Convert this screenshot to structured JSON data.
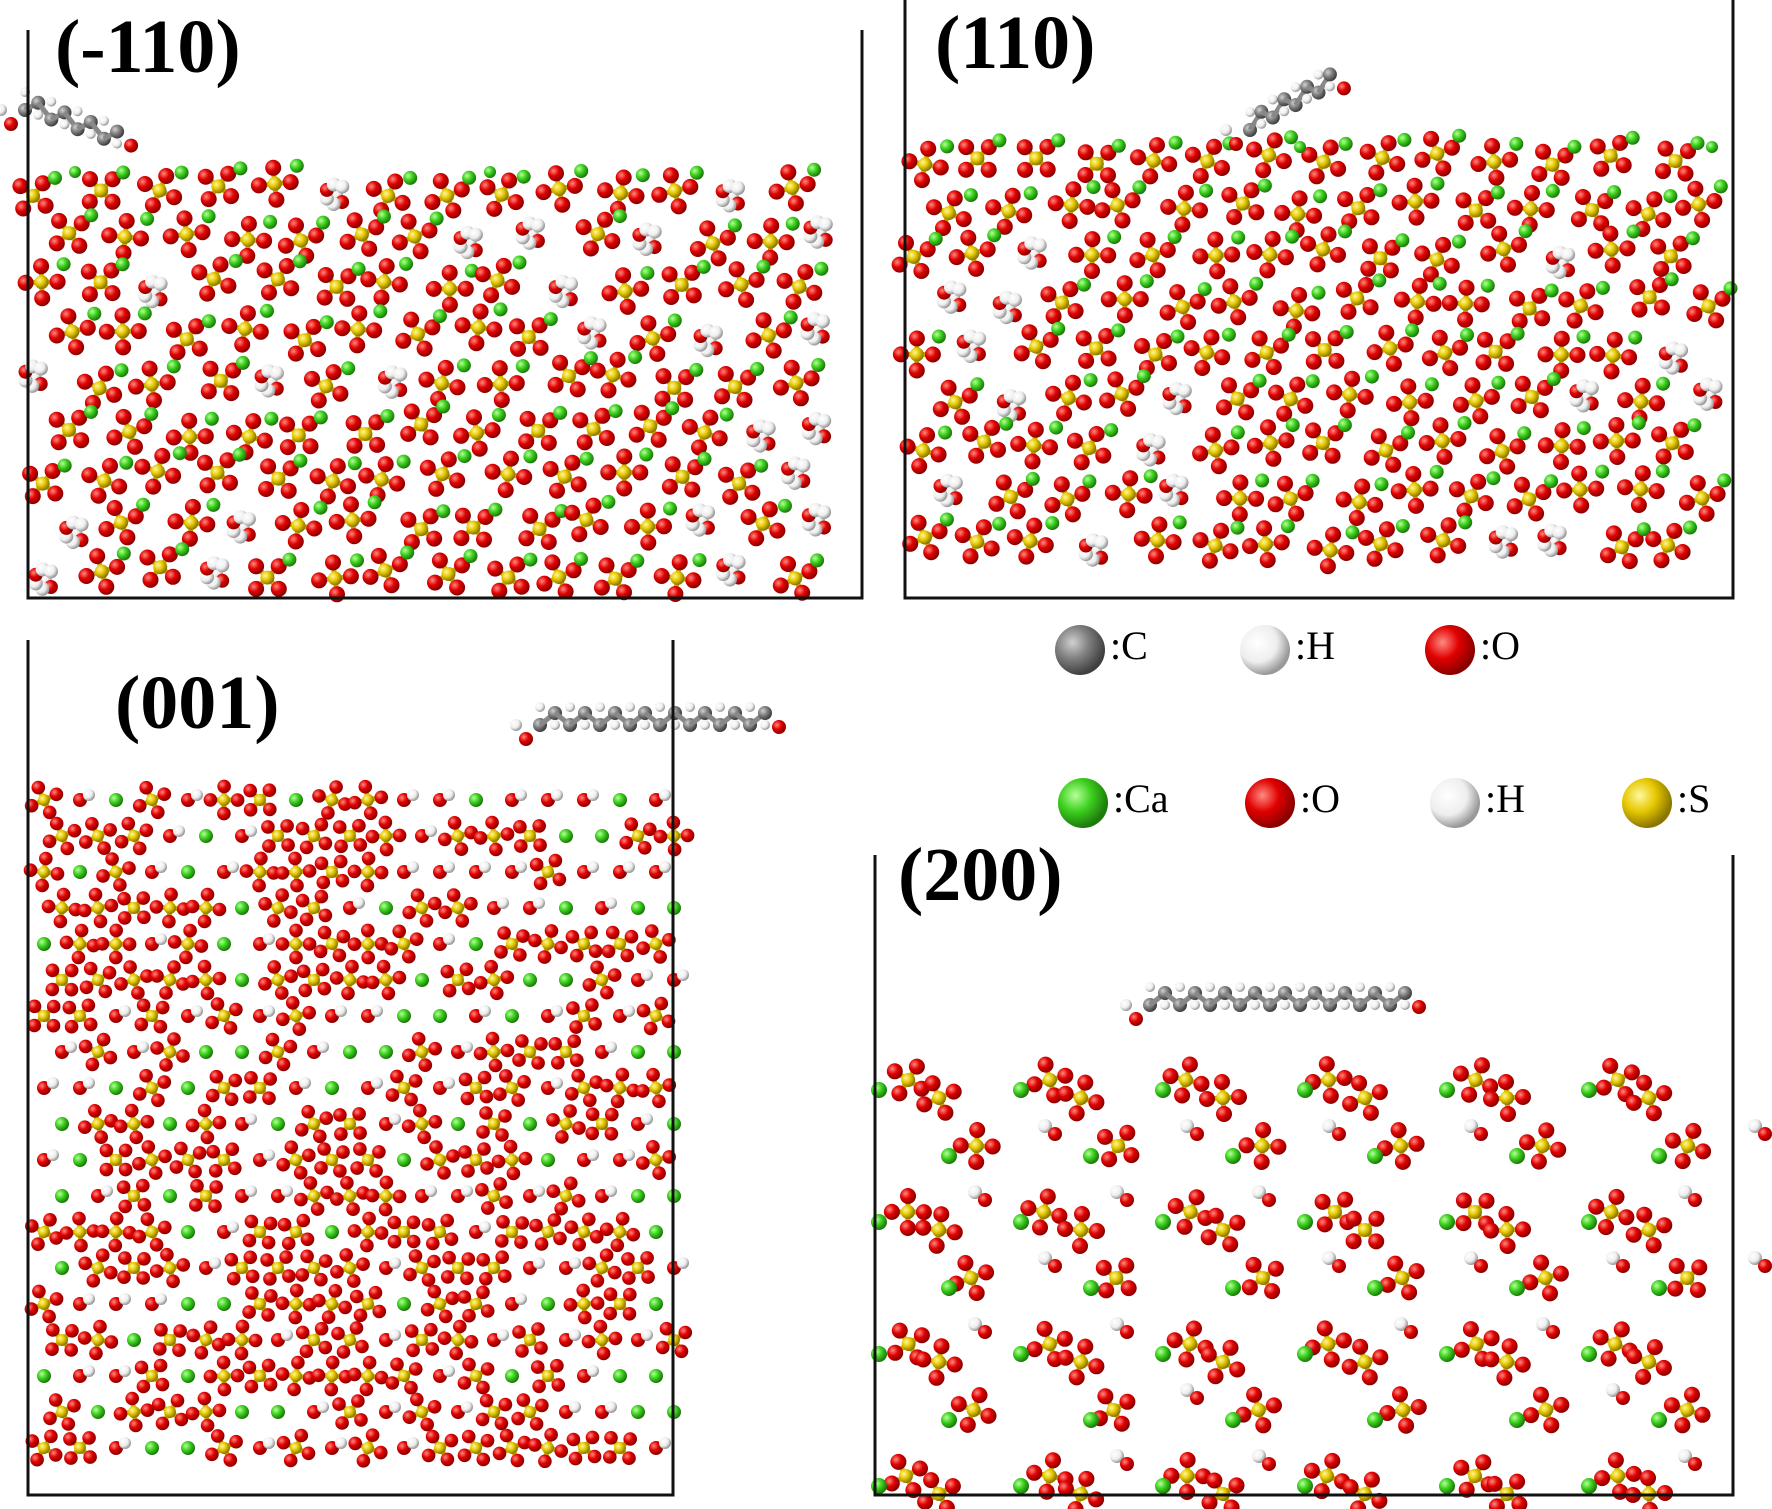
{
  "panels": [
    {
      "label": "(-110)"
    },
    {
      "label": "(110)"
    },
    {
      "label": "(001)"
    },
    {
      "label": "(200)"
    }
  ],
  "legend": {
    "rows": [
      [
        {
          "label": ":C"
        },
        {
          "label": ":H"
        },
        {
          "label": ":O"
        }
      ],
      [
        {
          "label": ":Ca"
        },
        {
          "label": ":O"
        },
        {
          "label": ":H"
        },
        {
          "label": ":S"
        }
      ]
    ]
  }
}
